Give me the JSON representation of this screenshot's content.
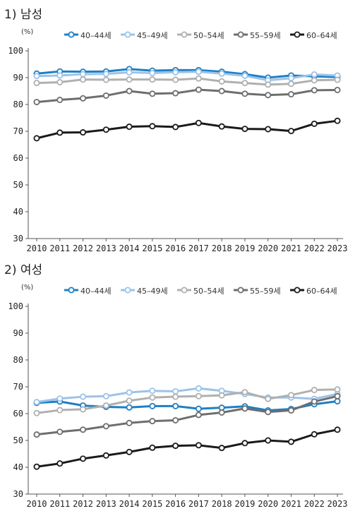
{
  "chart_data": [
    {
      "type": "line",
      "title": "1) 남성",
      "unit": "(%)",
      "xlabel": "",
      "ylabel": "",
      "ylim": [
        30,
        100
      ],
      "yticks": [
        30,
        40,
        50,
        60,
        70,
        80,
        90,
        100
      ],
      "grid": false,
      "legend": "top",
      "x": [
        "2010",
        "2011",
        "2012",
        "2013",
        "2014",
        "2015",
        "2016",
        "2017",
        "2018",
        "2019",
        "2020",
        "2021",
        "2022",
        "2023"
      ],
      "series": [
        {
          "name": "40–44세",
          "color": "#1f7fc4",
          "values": [
            91.5,
            92.3,
            92.2,
            92.3,
            93.2,
            92.6,
            92.8,
            92.8,
            92.2,
            91.3,
            90.0,
            90.8,
            90.5,
            90.2
          ]
        },
        {
          "name": "45–49세",
          "color": "#9cc3e8",
          "values": [
            90.6,
            90.8,
            91.3,
            91.4,
            92.0,
            91.7,
            92.0,
            92.2,
            91.5,
            90.7,
            89.0,
            89.8,
            91.2,
            90.8
          ]
        },
        {
          "name": "50–54세",
          "color": "#b0b0b0",
          "values": [
            88.0,
            88.3,
            89.3,
            89.2,
            89.3,
            89.3,
            89.2,
            89.7,
            88.6,
            88.0,
            87.4,
            87.7,
            89.0,
            89.2
          ]
        },
        {
          "name": "55–59세",
          "color": "#6e6e6e",
          "values": [
            80.9,
            81.7,
            82.3,
            83.3,
            85.0,
            84.0,
            84.2,
            85.5,
            85.0,
            84.0,
            83.5,
            83.8,
            85.3,
            85.4
          ]
        },
        {
          "name": "60–64세",
          "color": "#1a1a1a",
          "values": [
            67.4,
            69.5,
            69.6,
            70.6,
            71.7,
            71.9,
            71.6,
            73.1,
            71.8,
            70.9,
            70.8,
            70.1,
            72.8,
            73.9
          ]
        }
      ]
    },
    {
      "type": "line",
      "title": "2) 여성",
      "unit": "(%)",
      "xlabel": "",
      "ylabel": "",
      "ylim": [
        30,
        100
      ],
      "yticks": [
        30,
        40,
        50,
        60,
        70,
        80,
        90,
        100
      ],
      "grid": false,
      "legend": "top",
      "x": [
        "2010",
        "2011",
        "2012",
        "2013",
        "2014",
        "2015",
        "2016",
        "2017",
        "2018",
        "2019",
        "2020",
        "2021",
        "2022",
        "2023"
      ],
      "series": [
        {
          "name": "40–44세",
          "color": "#1f7fc4",
          "values": [
            64.0,
            64.5,
            63.0,
            62.5,
            62.3,
            62.8,
            62.8,
            61.8,
            62.2,
            62.7,
            61.2,
            61.7,
            63.5,
            64.6
          ]
        },
        {
          "name": "45–49세",
          "color": "#9cc3e8",
          "values": [
            64.3,
            65.6,
            66.3,
            66.5,
            67.9,
            68.5,
            68.3,
            69.4,
            68.5,
            67.3,
            66.0,
            66.0,
            65.5,
            67.3
          ]
        },
        {
          "name": "50–54세",
          "color": "#b0b0b0",
          "values": [
            60.2,
            61.3,
            61.6,
            63.0,
            64.8,
            66.0,
            66.3,
            66.5,
            66.8,
            68.0,
            65.5,
            66.9,
            68.8,
            69.0
          ]
        },
        {
          "name": "55–59세",
          "color": "#6e6e6e",
          "values": [
            52.2,
            53.2,
            54.0,
            55.3,
            56.5,
            57.2,
            57.5,
            59.5,
            60.4,
            61.9,
            60.6,
            61.2,
            64.5,
            66.5
          ]
        },
        {
          "name": "60–64세",
          "color": "#1a1a1a",
          "values": [
            40.2,
            41.4,
            43.2,
            44.4,
            45.7,
            47.3,
            48.0,
            48.2,
            47.2,
            49.0,
            50.0,
            49.5,
            52.3,
            54.0
          ]
        }
      ]
    }
  ]
}
